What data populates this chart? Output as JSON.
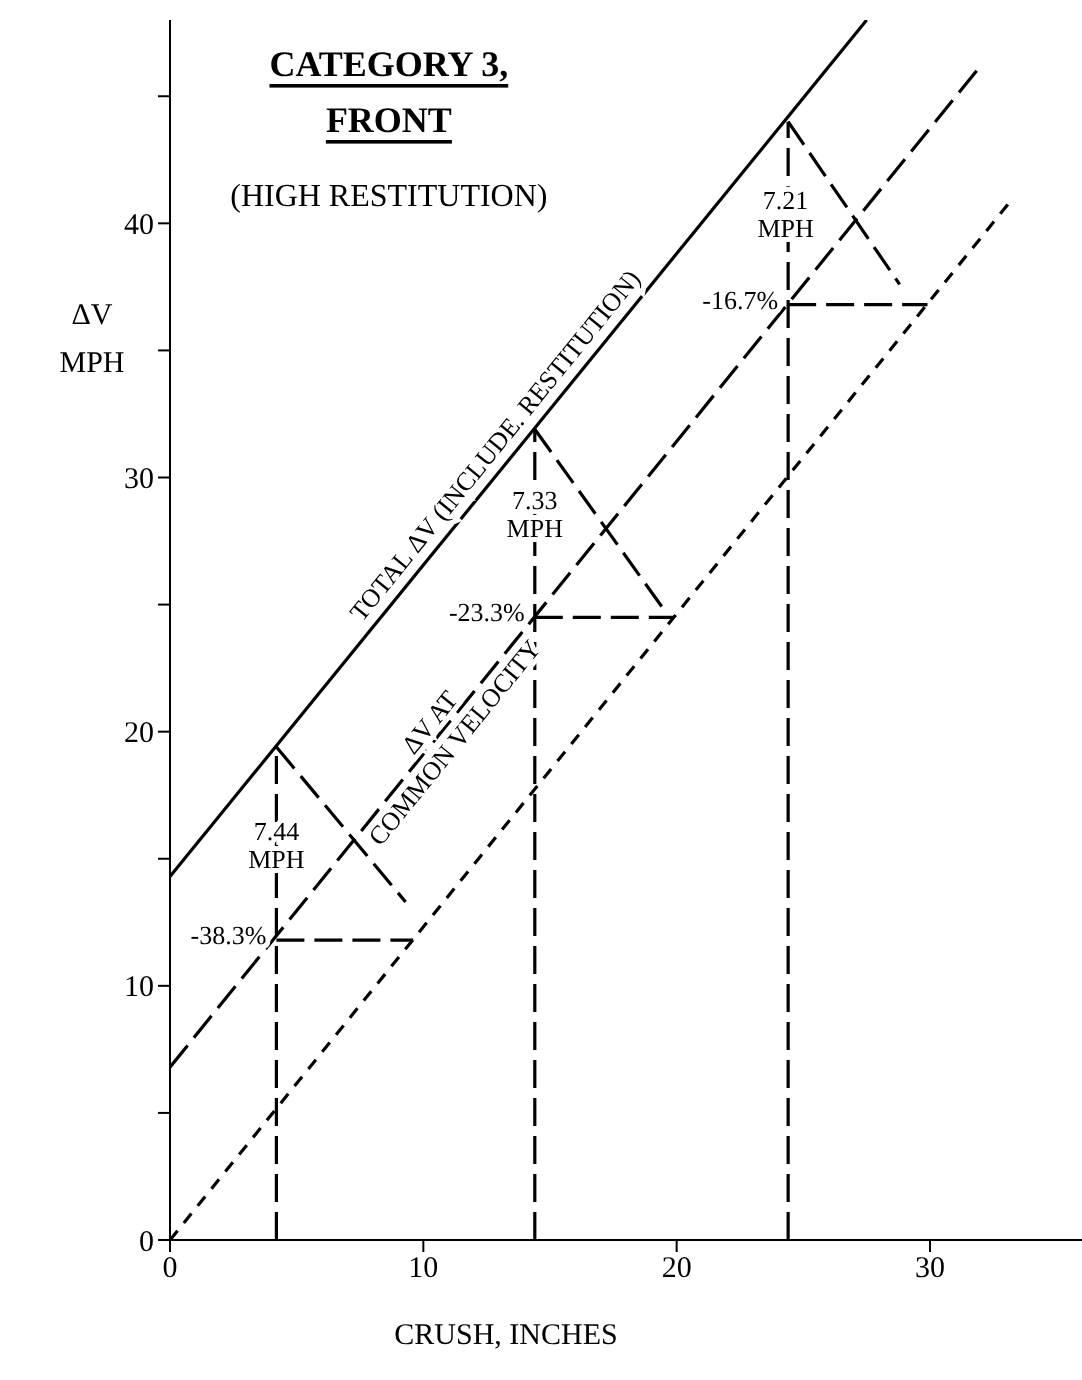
{
  "chart_data": {
    "type": "line",
    "title": "CATEGORY 3,\nFRONT",
    "subtitle": "(HIGH RESTITUTION)",
    "xlabel": "CRUSH, INCHES",
    "ylabel": "ΔV\nMPH",
    "xlim": [
      0,
      36
    ],
    "xticks": [
      0,
      10,
      20,
      30
    ],
    "ylim": [
      0,
      48
    ],
    "yticks": [
      0,
      {
        "value": 5,
        "label": null
      },
      10,
      {
        "value": 15,
        "label": null
      },
      20,
      {
        "value": 25,
        "label": null
      },
      30,
      {
        "value": 35,
        "label": null
      },
      40,
      {
        "value": 45,
        "label": null
      }
    ],
    "series": [
      {
        "color": "#000000",
        "line_style": "solid",
        "x": [
          0,
          27.5
        ],
        "values": [
          14.3,
          48
        ]
      },
      {
        "color": "#000000",
        "line_style": "dashed",
        "x": [
          0,
          32
        ],
        "values": [
          6.8,
          46.2
        ]
      },
      {
        "color": "#000000",
        "line_style": "dotted",
        "x": [
          0,
          33.2
        ],
        "values": [
          0,
          40.9
        ]
      },
      {
        "color": "#000000",
        "line_style": "dashed",
        "x": [
          4.2,
          4.2
        ],
        "values": [
          0,
          19.4
        ]
      },
      {
        "color": "#000000",
        "line_style": "dashed",
        "x": [
          14.4,
          14.4
        ],
        "values": [
          0,
          31.9
        ]
      },
      {
        "color": "#000000",
        "line_style": "dashed",
        "x": [
          24.4,
          24.4
        ],
        "values": [
          0,
          44
        ]
      },
      {
        "color": "#000000",
        "line_style": "dashed",
        "x": [
          4.2,
          9.6
        ],
        "values": [
          11.8,
          11.8
        ]
      },
      {
        "color": "#000000",
        "line_style": "dashed",
        "x": [
          14.4,
          19.9
        ],
        "values": [
          24.5,
          24.5
        ]
      },
      {
        "color": "#000000",
        "line_style": "dashed",
        "x": [
          24.4,
          29.9
        ],
        "values": [
          36.8,
          36.8
        ]
      },
      {
        "color": "#000000",
        "line_style": "dashed",
        "x": [
          4.2,
          9.3
        ],
        "values": [
          19.4,
          13.3
        ]
      },
      {
        "color": "#000000",
        "line_style": "dashed",
        "x": [
          14.4,
          19.5
        ],
        "values": [
          31.9,
          24.8
        ]
      },
      {
        "color": "#000000",
        "line_style": "dashed",
        "x": [
          24.4,
          28.8
        ],
        "values": [
          44,
          37.6
        ]
      }
    ],
    "annotations": [
      {
        "text": "TOTAL ΔV  (INCLUDE. RESTITUTION)",
        "x": 13.4,
        "y": 30.8
      },
      {
        "text": "ΔV AT\nCOMMON  VELOCITY",
        "x": 10.7,
        "y": 20
      },
      {
        "text": "7.44\nMPH",
        "x": 4.2,
        "y": 15.6
      },
      {
        "text": "-38.3%",
        "x": 4.2,
        "y": 11.8
      },
      {
        "text": "7.33\nMPH",
        "x": 14.4,
        "y": 28.6
      },
      {
        "text": "-23.3%",
        "x": 14.4,
        "y": 24.5
      },
      {
        "text": "7.21\nMPH",
        "x": 24.3,
        "y": 40.4
      },
      {
        "text": "-16.7%",
        "x": 24.4,
        "y": 36.8
      }
    ]
  }
}
